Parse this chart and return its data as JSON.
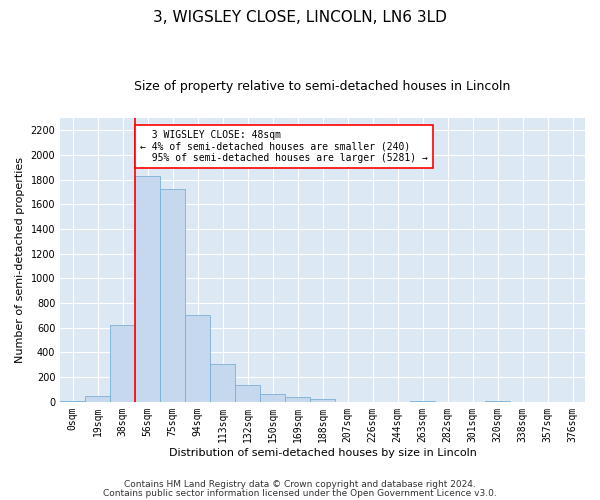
{
  "title": "3, WIGSLEY CLOSE, LINCOLN, LN6 3LD",
  "subtitle": "Size of property relative to semi-detached houses in Lincoln",
  "xlabel": "Distribution of semi-detached houses by size in Lincoln",
  "ylabel": "Number of semi-detached properties",
  "footnote1": "Contains HM Land Registry data © Crown copyright and database right 2024.",
  "footnote2": "Contains public sector information licensed under the Open Government Licence v3.0.",
  "bar_labels": [
    "0sqm",
    "19sqm",
    "38sqm",
    "56sqm",
    "75sqm",
    "94sqm",
    "113sqm",
    "132sqm",
    "150sqm",
    "169sqm",
    "188sqm",
    "207sqm",
    "226sqm",
    "244sqm",
    "263sqm",
    "282sqm",
    "301sqm",
    "320sqm",
    "338sqm",
    "357sqm",
    "376sqm"
  ],
  "bar_values": [
    10,
    50,
    620,
    1830,
    1720,
    700,
    305,
    135,
    60,
    40,
    20,
    0,
    0,
    0,
    10,
    0,
    0,
    5,
    0,
    0,
    0
  ],
  "bar_color": "#c5d8ed",
  "bar_edge_color": "#7ab0d4",
  "ylim": [
    0,
    2300
  ],
  "yticks": [
    0,
    200,
    400,
    600,
    800,
    1000,
    1200,
    1400,
    1600,
    1800,
    2000,
    2200
  ],
  "property_label": "3 WIGSLEY CLOSE: 48sqm",
  "pct_smaller": 4,
  "count_smaller": 240,
  "pct_larger": 95,
  "count_larger": 5281,
  "vline_x": 2.5,
  "fig_bg_color": "#ffffff",
  "plot_bg_color": "#dce9f5",
  "grid_color": "#ffffff",
  "title_fontsize": 11,
  "subtitle_fontsize": 9,
  "axis_label_fontsize": 8,
  "tick_fontsize": 7,
  "annotation_fontsize": 7,
  "footnote_fontsize": 6.5
}
